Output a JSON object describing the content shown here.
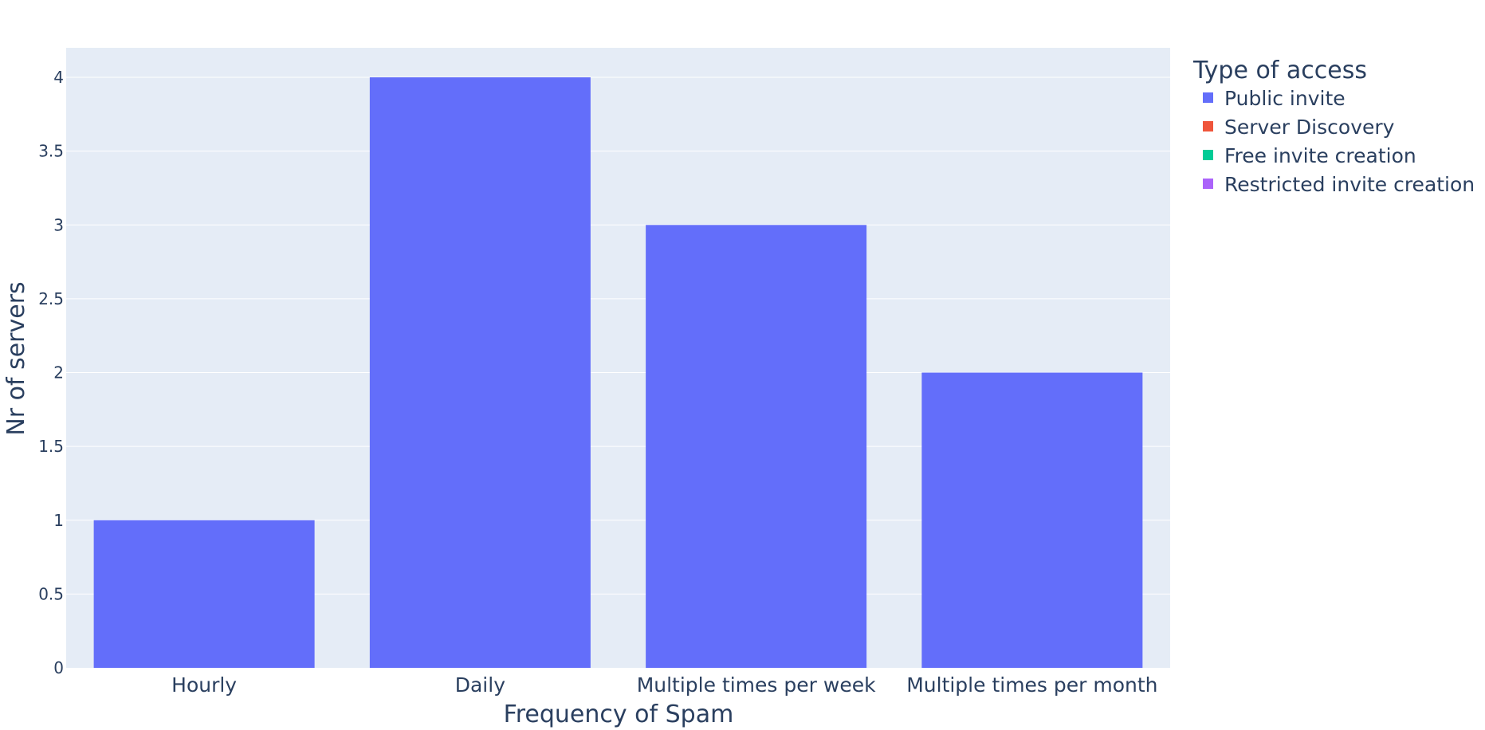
{
  "chart_data": {
    "type": "bar",
    "title": "",
    "xlabel": "Frequency of Spam",
    "ylabel": "Nr of servers",
    "categories": [
      "Hourly",
      "Daily",
      "Multiple times per week",
      "Multiple times per month"
    ],
    "series": [
      {
        "name": "Public invite",
        "color": "#636efa",
        "values": [
          1,
          4,
          3,
          2
        ]
      },
      {
        "name": "Server Discovery",
        "color": "#ef553b",
        "values": [
          null,
          null,
          null,
          null
        ]
      },
      {
        "name": "Free invite creation",
        "color": "#00cc96",
        "values": [
          null,
          null,
          null,
          null
        ]
      },
      {
        "name": "Restricted invite creation",
        "color": "#ab63fa",
        "values": [
          null,
          null,
          null,
          null
        ]
      }
    ],
    "ylim": [
      0,
      4.2
    ],
    "yticks": [
      0,
      0.5,
      1,
      1.5,
      2,
      2.5,
      3,
      3.5,
      4
    ],
    "ytick_labels": [
      "0",
      "0.5",
      "1",
      "1.5",
      "2",
      "2.5",
      "3",
      "3.5",
      "4"
    ],
    "grid": true,
    "legend": {
      "title": "Type of access",
      "placement": "top-right, outside plot"
    },
    "colors": {
      "plot_background": "#e5ecf6",
      "grid": "#ffffff",
      "text": "#2a3f5f"
    }
  }
}
